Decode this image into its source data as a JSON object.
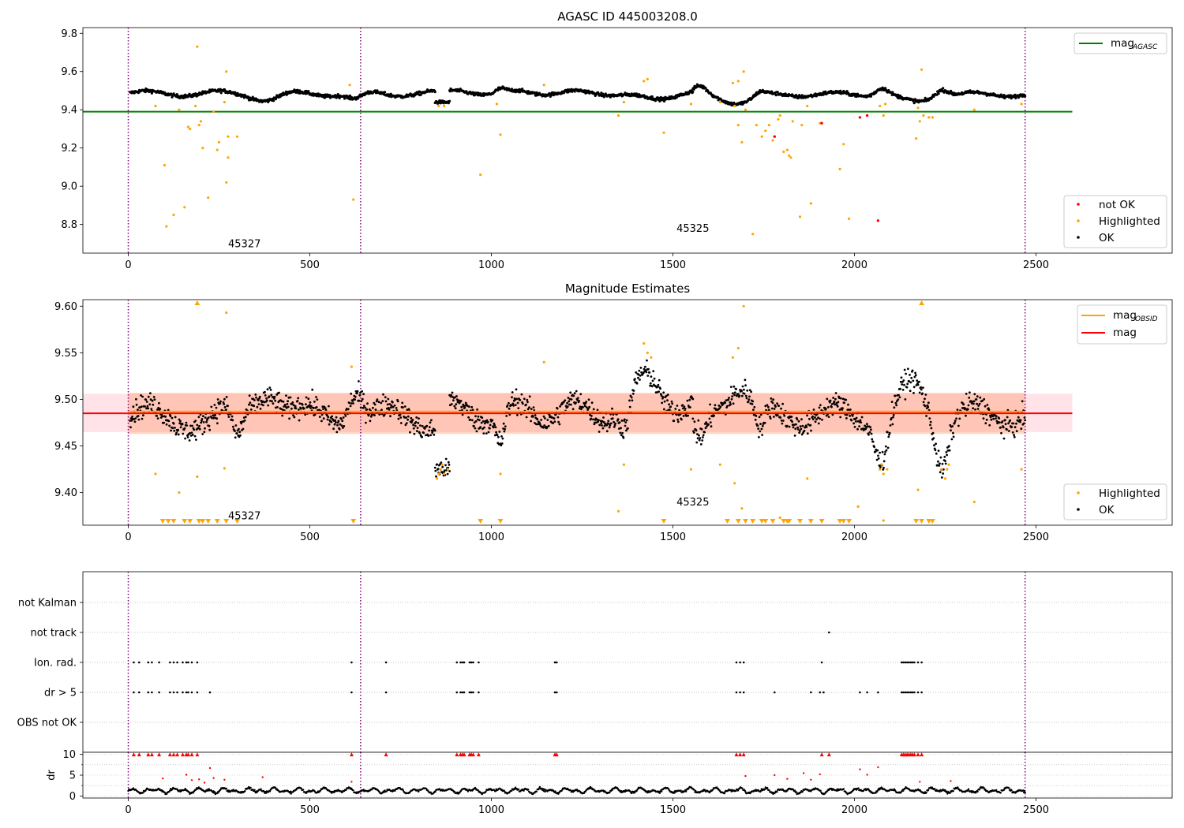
{
  "colors": {
    "ok": "#000000",
    "highlighted": "#ffa500",
    "not_ok": "#ff0000",
    "agasc_line": "#008000",
    "obsid_line": "#ffa500",
    "mag_line": "#ff0000",
    "band_outer": "#ffc0cb",
    "band_inner": "#ffa07a",
    "obs_boundary": "#800080",
    "grid": "#b0b0b0"
  },
  "chart_data": [
    {
      "type": "scatter",
      "title": "AGASC ID 445003208.0",
      "xlim": [
        -125,
        2875
      ],
      "ylim": [
        8.65,
        9.83
      ],
      "x_ticks": [
        0,
        500,
        1000,
        1500,
        2000,
        2500
      ],
      "y_ticks": [
        8.8,
        9.0,
        9.2,
        9.4,
        9.6,
        9.8
      ],
      "legend_top": {
        "placement": "upper right",
        "entries": [
          {
            "label": "mag",
            "subscript": "AGASC",
            "color": "#008000"
          }
        ]
      },
      "legend_bottom": {
        "placement": "lower right",
        "entries": [
          {
            "label": "not OK",
            "color": "#ff0000"
          },
          {
            "label": "Highlighted",
            "color": "#ffa500"
          },
          {
            "label": "OK",
            "color": "#000000"
          }
        ]
      },
      "hlines": [
        {
          "name": "mag_AGASC",
          "y": 9.39,
          "x": [
            -125,
            2600
          ],
          "color": "#008000"
        }
      ],
      "obs_boundaries": [
        0,
        640,
        2470
      ],
      "obs_labels": [
        {
          "text": "45327",
          "x": 320,
          "y": 8.69
        },
        {
          "text": "45325",
          "x": 1555,
          "y": 8.77
        }
      ],
      "ok_segments": [
        {
          "x0": 5,
          "x1": 845,
          "base": 9.485,
          "amp": 0.015,
          "period": 200,
          "noise": 0.009,
          "n": 560,
          "dips": [
            {
              "c": 385,
              "w": 50,
              "d": -0.03
            },
            {
              "c": 625,
              "w": 30,
              "d": -0.035
            }
          ]
        },
        {
          "x0": 845,
          "x1": 885,
          "base": 9.44,
          "amp": 0,
          "period": 100,
          "noise": 0.008,
          "n": 30,
          "dips": []
        },
        {
          "x0": 885,
          "x1": 1555,
          "base": 9.49,
          "amp": 0.012,
          "period": 170,
          "noise": 0.009,
          "n": 450,
          "dips": [
            {
              "c": 1435,
              "w": 80,
              "d": -0.03
            },
            {
              "c": 1025,
              "w": 18,
              "d": 0.02
            }
          ]
        },
        {
          "x0": 1555,
          "x1": 2470,
          "base": 9.48,
          "amp": 0.012,
          "period": 190,
          "noise": 0.009,
          "n": 600,
          "dips": [
            {
              "c": 1575,
              "w": 25,
              "d": 0.035
            },
            {
              "c": 1680,
              "w": 60,
              "d": -0.04
            },
            {
              "c": 1740,
              "w": 20,
              "d": 0.02
            },
            {
              "c": 2075,
              "w": 25,
              "d": 0.04
            },
            {
              "c": 2165,
              "w": 55,
              "d": -0.04
            },
            {
              "c": 2240,
              "w": 25,
              "d": 0.04
            }
          ]
        }
      ],
      "highlighted": [
        [
          75,
          9.42
        ],
        [
          100,
          9.11
        ],
        [
          105,
          8.79
        ],
        [
          125,
          8.85
        ],
        [
          140,
          9.4
        ],
        [
          155,
          8.89
        ],
        [
          165,
          9.31
        ],
        [
          170,
          9.3
        ],
        [
          185,
          9.42
        ],
        [
          190,
          9.73
        ],
        [
          195,
          9.32
        ],
        [
          200,
          9.34
        ],
        [
          205,
          9.2
        ],
        [
          220,
          8.94
        ],
        [
          235,
          9.39
        ],
        [
          245,
          9.19
        ],
        [
          250,
          9.23
        ],
        [
          265,
          9.44
        ],
        [
          270,
          9.6
        ],
        [
          270,
          9.02
        ],
        [
          275,
          9.26
        ],
        [
          275,
          9.15
        ],
        [
          300,
          9.26
        ],
        [
          610,
          9.53
        ],
        [
          620,
          8.93
        ],
        [
          855,
          9.42
        ],
        [
          870,
          9.42
        ],
        [
          970,
          9.06
        ],
        [
          1015,
          9.43
        ],
        [
          1025,
          9.27
        ],
        [
          1145,
          9.53
        ],
        [
          1350,
          9.37
        ],
        [
          1365,
          9.44
        ],
        [
          1420,
          9.55
        ],
        [
          1430,
          9.56
        ],
        [
          1475,
          9.28
        ],
        [
          1550,
          9.43
        ],
        [
          1630,
          9.44
        ],
        [
          1665,
          9.54
        ],
        [
          1670,
          9.42
        ],
        [
          1680,
          9.55
        ],
        [
          1680,
          9.32
        ],
        [
          1690,
          9.23
        ],
        [
          1695,
          9.6
        ],
        [
          1700,
          9.4
        ],
        [
          1720,
          8.75
        ],
        [
          1730,
          9.32
        ],
        [
          1745,
          9.26
        ],
        [
          1755,
          9.29
        ],
        [
          1765,
          9.32
        ],
        [
          1775,
          9.24
        ],
        [
          1790,
          9.35
        ],
        [
          1795,
          9.37
        ],
        [
          1805,
          9.18
        ],
        [
          1815,
          9.19
        ],
        [
          1820,
          9.16
        ],
        [
          1825,
          9.15
        ],
        [
          1830,
          9.34
        ],
        [
          1850,
          8.84
        ],
        [
          1855,
          9.32
        ],
        [
          1870,
          9.42
        ],
        [
          1880,
          8.91
        ],
        [
          1905,
          9.33
        ],
        [
          1960,
          9.09
        ],
        [
          1970,
          9.22
        ],
        [
          1985,
          8.83
        ],
        [
          2070,
          9.42
        ],
        [
          2080,
          9.37
        ],
        [
          2085,
          9.43
        ],
        [
          2170,
          9.25
        ],
        [
          2175,
          9.41
        ],
        [
          2180,
          9.34
        ],
        [
          2185,
          9.61
        ],
        [
          2190,
          9.37
        ],
        [
          2205,
          9.36
        ],
        [
          2215,
          9.36
        ],
        [
          2330,
          9.4
        ],
        [
          2460,
          9.43
        ]
      ],
      "not_ok": [
        [
          1780,
          9.26
        ],
        [
          1910,
          9.33
        ],
        [
          2015,
          9.36
        ],
        [
          2035,
          9.37
        ],
        [
          2065,
          8.82
        ]
      ]
    },
    {
      "type": "scatter",
      "title": "Magnitude Estimates",
      "xlim": [
        -125,
        2875
      ],
      "ylim": [
        9.365,
        9.607
      ],
      "x_ticks": [
        0,
        500,
        1000,
        1500,
        2000,
        2500
      ],
      "y_ticks": [
        9.4,
        9.45,
        9.5,
        9.55,
        9.6
      ],
      "legend_top": {
        "placement": "upper right",
        "entries": [
          {
            "label": "mag",
            "subscript": "OBSID",
            "color": "#ffa500"
          },
          {
            "label": "mag",
            "subscript": "",
            "color": "#ff0000"
          }
        ]
      },
      "legend_bottom": {
        "placement": "lower right",
        "entries": [
          {
            "label": "Highlighted",
            "color": "#ffa500"
          },
          {
            "label": "OK",
            "color": "#000000"
          }
        ]
      },
      "hlines": [
        {
          "name": "mag",
          "y": 9.485,
          "x": [
            -125,
            2600
          ],
          "color": "#ff0000"
        },
        {
          "name": "mag_OBSID",
          "y": 9.487,
          "x": [
            0,
            2470
          ],
          "color": "#ffa500"
        }
      ],
      "bands": [
        {
          "y0": 9.465,
          "y1": 9.506,
          "x": [
            -125,
            2600
          ],
          "color": "#ffc0cb"
        },
        {
          "y0": 9.463,
          "y1": 9.507,
          "x": [
            0,
            2470
          ],
          "color": "#ffa07a"
        }
      ],
      "obs_boundaries": [
        0,
        640,
        2470
      ],
      "obs_labels": [
        {
          "text": "45327",
          "x": 320,
          "y": 9.373
        },
        {
          "text": "45325",
          "x": 1555,
          "y": 9.388
        }
      ],
      "ok_segments": [
        {
          "x0": 5,
          "x1": 845,
          "base": 9.48,
          "amp": 0.014,
          "period": 220,
          "noise": 0.012,
          "n": 560,
          "dips": [
            {
              "c": 385,
              "w": 50,
              "d": 0.035
            },
            {
              "c": 625,
              "w": 30,
              "d": 0.035
            },
            {
              "c": 300,
              "w": 20,
              "d": -0.03
            }
          ]
        },
        {
          "x0": 845,
          "x1": 885,
          "base": 9.425,
          "amp": 0,
          "period": 100,
          "noise": 0.01,
          "n": 30,
          "dips": []
        },
        {
          "x0": 885,
          "x1": 1555,
          "base": 9.487,
          "amp": 0.012,
          "period": 170,
          "noise": 0.012,
          "n": 450,
          "dips": [
            {
              "c": 1435,
              "w": 60,
              "d": 0.035
            },
            {
              "c": 1025,
              "w": 18,
              "d": -0.035
            },
            {
              "c": 1370,
              "w": 20,
              "d": -0.03
            }
          ]
        },
        {
          "x0": 1555,
          "x1": 2470,
          "base": 9.483,
          "amp": 0.012,
          "period": 190,
          "noise": 0.012,
          "n": 600,
          "dips": [
            {
              "c": 1575,
              "w": 25,
              "d": -0.035
            },
            {
              "c": 1680,
              "w": 50,
              "d": 0.035
            },
            {
              "c": 1740,
              "w": 20,
              "d": -0.03
            },
            {
              "c": 2075,
              "w": 25,
              "d": -0.045
            },
            {
              "c": 2165,
              "w": 50,
              "d": 0.03
            },
            {
              "c": 2240,
              "w": 25,
              "d": -0.05
            }
          ]
        }
      ],
      "highlighted": [
        [
          75,
          9.42
        ],
        [
          140,
          9.4
        ],
        [
          190,
          9.417
        ],
        [
          265,
          9.426
        ],
        [
          270,
          9.593
        ],
        [
          615,
          9.535
        ],
        [
          1025,
          9.42
        ],
        [
          1145,
          9.54
        ],
        [
          1350,
          9.38
        ],
        [
          1365,
          9.43
        ],
        [
          1420,
          9.56
        ],
        [
          1430,
          9.55
        ],
        [
          1440,
          9.545
        ],
        [
          1550,
          9.425
        ],
        [
          1630,
          9.43
        ],
        [
          1665,
          9.545
        ],
        [
          1670,
          9.41
        ],
        [
          1680,
          9.555
        ],
        [
          1690,
          9.383
        ],
        [
          1695,
          9.6
        ],
        [
          1795,
          9.373
        ],
        [
          1870,
          9.415
        ],
        [
          2010,
          9.385
        ],
        [
          2080,
          9.37
        ],
        [
          2175,
          9.403
        ],
        [
          2330,
          9.39
        ],
        [
          2460,
          9.425
        ],
        [
          850,
          9.415
        ],
        [
          855,
          9.42
        ],
        [
          860,
          9.425
        ],
        [
          865,
          9.43
        ],
        [
          870,
          9.42
        ],
        [
          880,
          9.425
        ],
        [
          2070,
          9.425
        ],
        [
          2075,
          9.43
        ],
        [
          2080,
          9.42
        ],
        [
          2090,
          9.425
        ],
        [
          2240,
          9.425
        ],
        [
          2250,
          9.415
        ],
        [
          2255,
          9.425
        ],
        [
          2260,
          9.43
        ]
      ],
      "clipped_low_markers_x": [
        95,
        110,
        125,
        155,
        170,
        195,
        205,
        220,
        245,
        270,
        300,
        620,
        970,
        1025,
        1475,
        1650,
        1680,
        1700,
        1720,
        1745,
        1755,
        1775,
        1805,
        1815,
        1820,
        1850,
        1880,
        1910,
        1960,
        1970,
        1985,
        2170,
        2185,
        2205,
        2215
      ],
      "clipped_high_markers_x": [
        190,
        2185
      ]
    },
    {
      "type": "scatter",
      "title": "",
      "xlim": [
        -125,
        2875
      ],
      "x_ticks": [
        0,
        500,
        1000,
        1500,
        2000,
        2500
      ],
      "flag_categories": [
        "not Kalman",
        "not track",
        "Ion. rad.",
        "dr > 5",
        "OBS not OK"
      ],
      "flag_points": {
        "not track": [
          1930
        ],
        "Ion. rad.": [
          15,
          30,
          55,
          65,
          85,
          115,
          125,
          135,
          150,
          160,
          165,
          175,
          190,
          615,
          710,
          905,
          915,
          920,
          925,
          940,
          945,
          950,
          965,
          1175,
          1180,
          1675,
          1685,
          1695,
          1910,
          2130,
          2135,
          2140,
          2145,
          2150,
          2155,
          2160,
          2165,
          2175,
          2185
        ],
        "dr > 5": [
          15,
          30,
          55,
          65,
          85,
          115,
          125,
          135,
          150,
          160,
          165,
          175,
          190,
          225,
          615,
          710,
          905,
          915,
          920,
          925,
          940,
          945,
          950,
          965,
          1175,
          1180,
          1675,
          1685,
          1695,
          1780,
          1880,
          1905,
          1915,
          2015,
          2035,
          2065,
          2130,
          2135,
          2140,
          2145,
          2150,
          2155,
          2160,
          2165,
          2175,
          2185
        ]
      },
      "dr": {
        "ylabel": "dr",
        "ylim": [
          -0.5,
          10.5
        ],
        "y_ticks": [
          0,
          5,
          10
        ],
        "baseline_x": [
          0,
          2470
        ],
        "baseline": 1.3,
        "capped_at_10_x": [
          15,
          30,
          55,
          65,
          85,
          115,
          125,
          135,
          150,
          160,
          165,
          175,
          190,
          615,
          710,
          905,
          915,
          920,
          925,
          940,
          945,
          950,
          965,
          1175,
          1180,
          1675,
          1685,
          1695,
          1910,
          1930,
          2130,
          2135,
          2140,
          2145,
          2150,
          2155,
          2160,
          2165,
          2175,
          2185
        ],
        "scattered": [
          [
            95,
            4.2
          ],
          [
            160,
            5.1
          ],
          [
            175,
            3.8
          ],
          [
            195,
            4.0
          ],
          [
            210,
            3.2
          ],
          [
            225,
            6.7
          ],
          [
            235,
            4.3
          ],
          [
            265,
            3.9
          ],
          [
            370,
            4.5
          ],
          [
            615,
            3.4
          ],
          [
            1700,
            4.8
          ],
          [
            1780,
            5.0
          ],
          [
            1815,
            4.1
          ],
          [
            1860,
            5.5
          ],
          [
            1880,
            3.9
          ],
          [
            1905,
            5.2
          ],
          [
            2015,
            6.4
          ],
          [
            2035,
            5.1
          ],
          [
            2065,
            6.9
          ],
          [
            2180,
            3.4
          ],
          [
            2265,
            3.6
          ]
        ]
      },
      "obs_boundaries": [
        0,
        640,
        2470
      ]
    }
  ]
}
